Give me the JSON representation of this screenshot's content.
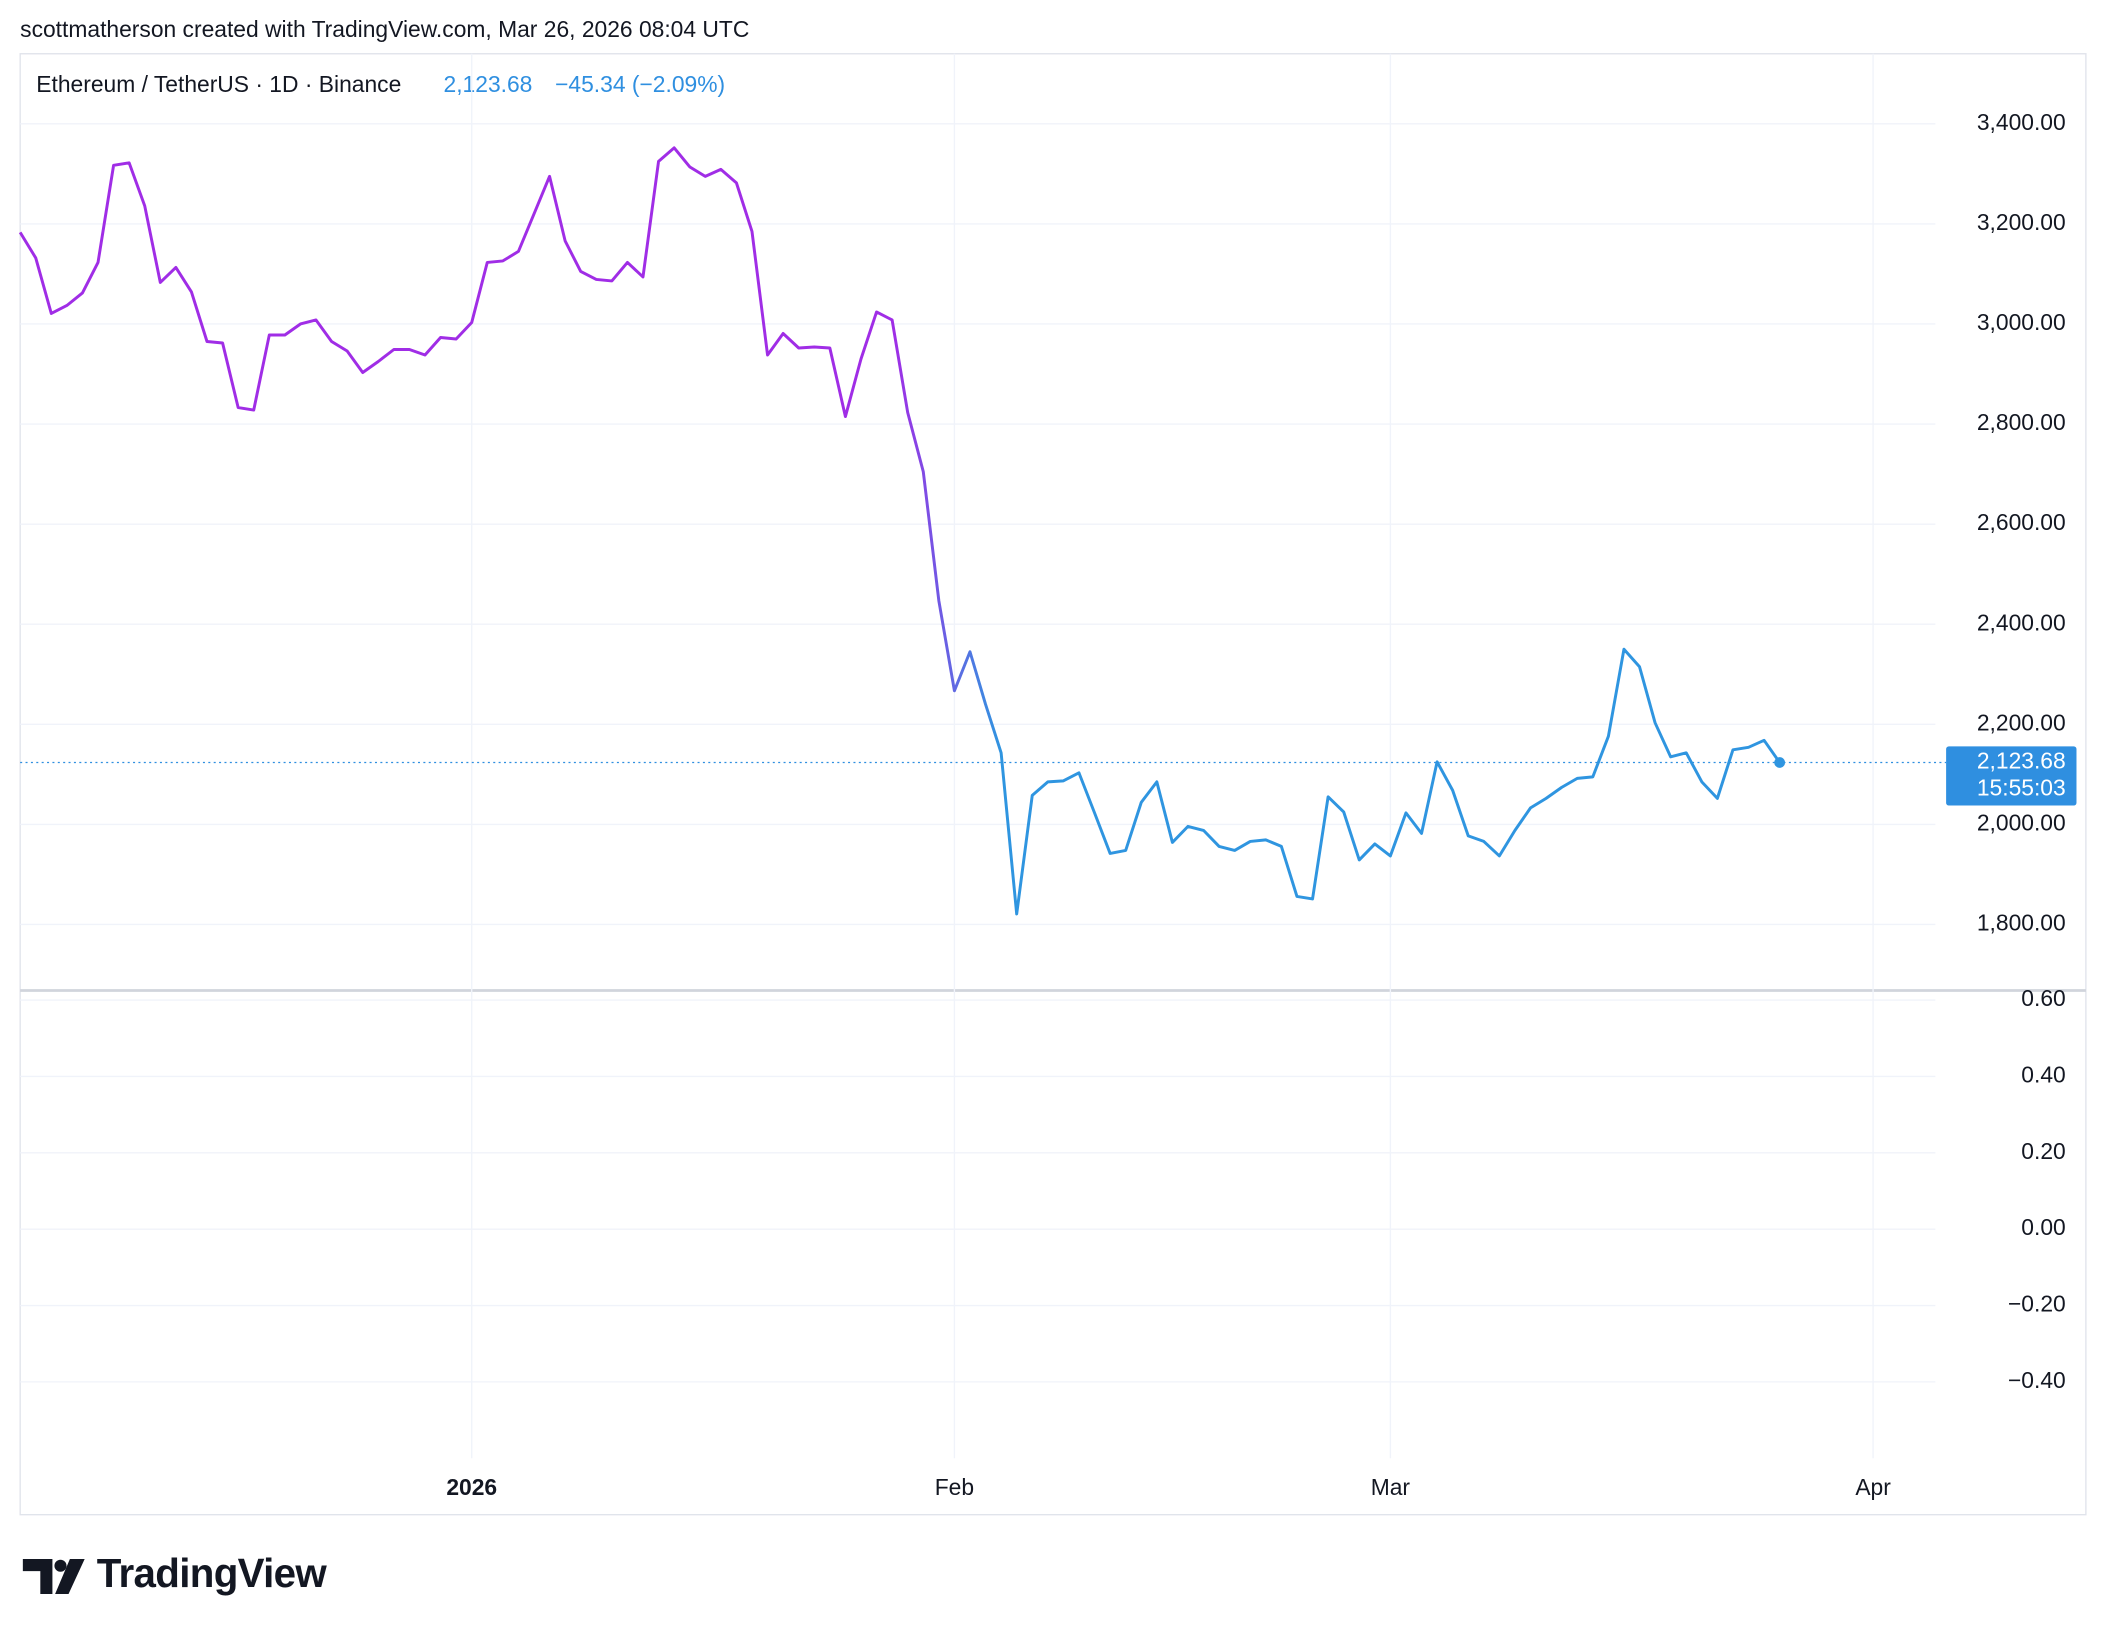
{
  "caption": "scottmatherson created with TradingView.com, Mar 26, 2026 08:04 UTC",
  "header": {
    "symbol": "Ethereum / TetherUS · 1D · Binance",
    "change": "−45.34 (−2.09%)"
  },
  "chart_data": [
    {
      "type": "line",
      "title": "Ethereum / TetherUS · 1D · Binance",
      "values": [
        3183,
        3132,
        3021,
        3037,
        3062,
        3123,
        3317,
        3322,
        3236,
        3083,
        3113,
        3064,
        2965,
        2962,
        2833,
        2828,
        2978,
        2978,
        3000,
        3008,
        2965,
        2946,
        2903,
        2925,
        2949,
        2949,
        2938,
        2973,
        2970,
        3003,
        3123,
        3126,
        3145,
        3220,
        3295,
        3166,
        3105,
        3089,
        3086,
        3123,
        3094,
        3325,
        3352,
        3314,
        3295,
        3309,
        3282,
        3185,
        2938,
        2981,
        2952,
        2954,
        2952,
        2815,
        2930,
        3024,
        3008,
        2823,
        2705,
        2447,
        2267,
        2345,
        2240,
        2143,
        1821,
        2058,
        2085,
        2087,
        2103,
        2023,
        1942,
        1948,
        2044,
        2085,
        1964,
        1996,
        1988,
        1956,
        1948,
        1966,
        1969,
        1956,
        1856,
        1851,
        2055,
        2025,
        1929,
        1961,
        1937,
        2023,
        1982,
        2125,
        2068,
        1977,
        1966,
        1937,
        1988,
        2033,
        2052,
        2074,
        2092,
        2095,
        2176,
        2350,
        2315,
        2203,
        2135,
        2143,
        2085,
        2052,
        2149,
        2154,
        2168,
        2123.68
      ],
      "colors": [
        "#a02de6",
        "#2f95e0"
      ],
      "last_price": {
        "value": 2123.68,
        "label": "2,123.68"
      },
      "countdown": "15:55:03",
      "xlim": [
        0,
        123
      ],
      "xticks": [
        {
          "value": 29,
          "label": "2026"
        },
        {
          "value": 60,
          "label": "Feb"
        },
        {
          "value": 88,
          "label": "Mar"
        },
        {
          "value": 119,
          "label": "Apr"
        }
      ],
      "ylim": [
        1668,
        3540
      ],
      "yticks": [
        {
          "value": 1800,
          "label": "1,800.00"
        },
        {
          "value": 2000,
          "label": "2,000.00"
        },
        {
          "value": 2200,
          "label": "2,200.00"
        },
        {
          "value": 2400,
          "label": "2,400.00"
        },
        {
          "value": 2600,
          "label": "2,600.00"
        },
        {
          "value": 2800,
          "label": "2,800.00"
        },
        {
          "value": 3000,
          "label": "3,000.00"
        },
        {
          "value": 3200,
          "label": "3,200.00"
        },
        {
          "value": 3400,
          "label": "3,400.00"
        }
      ],
      "grid": true
    },
    {
      "type": "line",
      "ylim": [
        -0.6,
        0.625
      ],
      "yticks": [
        {
          "value": -0.4,
          "label": "−0.40"
        },
        {
          "value": -0.2,
          "label": "−0.20"
        },
        {
          "value": 0,
          "label": "0.00"
        },
        {
          "value": 0.2,
          "label": "0.20"
        },
        {
          "value": 0.4,
          "label": "0.40"
        },
        {
          "value": 0.6,
          "label": "0.60"
        }
      ],
      "grid": true
    }
  ],
  "footer": {
    "logo": "TradingView"
  }
}
